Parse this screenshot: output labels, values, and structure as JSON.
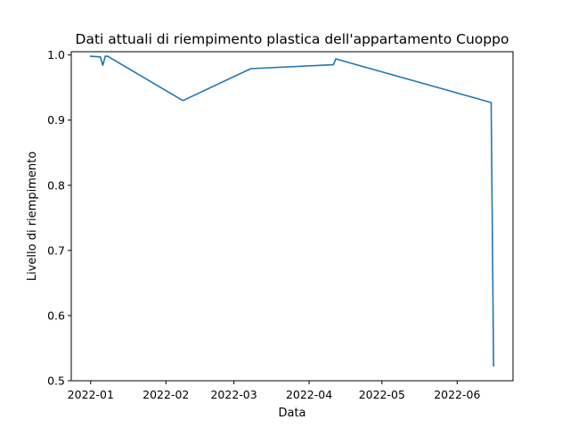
{
  "chart_data": {
    "type": "line",
    "title": "Dati attuali di riempimento plastica dell'appartamento Cuoppo",
    "xlabel": "Data",
    "ylabel": "Livello di riempimento",
    "x_ticks": [
      "2022-01",
      "2022-02",
      "2022-03",
      "2022-04",
      "2022-05",
      "2022-06"
    ],
    "y_ticks": [
      "0.5",
      "0.6",
      "0.7",
      "0.8",
      "0.9",
      "1.0"
    ],
    "xlim": [
      "2021-12-24",
      "2022-06-24"
    ],
    "ylim": [
      0.5,
      1.005
    ],
    "grid": false,
    "series": [
      {
        "color": "#1f77b4",
        "x": [
          "2022-01-01",
          "2022-01-05",
          "2022-01-06",
          "2022-01-07",
          "2022-01-08",
          "2022-02-08",
          "2022-03-08",
          "2022-04-11",
          "2022-04-12",
          "2022-06-15",
          "2022-06-16"
        ],
        "y": [
          0.998,
          0.997,
          0.984,
          0.998,
          0.998,
          0.93,
          0.979,
          0.985,
          0.994,
          0.927,
          0.523
        ]
      }
    ]
  }
}
